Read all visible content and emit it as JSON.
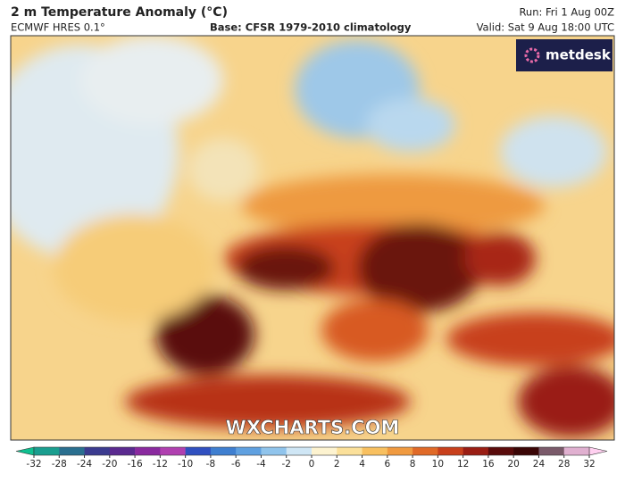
{
  "header": {
    "title": "2 m Temperature Anomaly (°C)",
    "model": "ECMWF HRES 0.1°",
    "base": "Base: CFSR 1979-2010 climatology",
    "run": "Run: Fri 1 Aug 00Z",
    "valid": "Valid: Sat 9 Aug 18:00 UTC"
  },
  "logo": "metdesk",
  "watermark": "WXCHARTS.COM",
  "colorbar": {
    "ticks": [
      -32,
      -28,
      -24,
      -20,
      -16,
      -12,
      -10,
      -8,
      -6,
      -4,
      -2,
      0,
      2,
      4,
      6,
      8,
      10,
      12,
      16,
      20,
      24,
      28,
      32
    ],
    "colors": [
      "#1a9e8f",
      "#2a6f8f",
      "#3b3b8f",
      "#5a2a8f",
      "#8a2a9f",
      "#b040b0",
      "#3050c0",
      "#3f7fd0",
      "#5fa0e0",
      "#90c4ec",
      "#cfe6f5",
      "#fdf3d0",
      "#fbe09a",
      "#f8c060",
      "#f09a40",
      "#e06a28",
      "#c8401c",
      "#9a1e14",
      "#5a0c0c",
      "#3a0606",
      "#7a5a6a",
      "#e0b0d0"
    ],
    "extend_colors": [
      "#10c090",
      "#ffd0f0"
    ]
  }
}
